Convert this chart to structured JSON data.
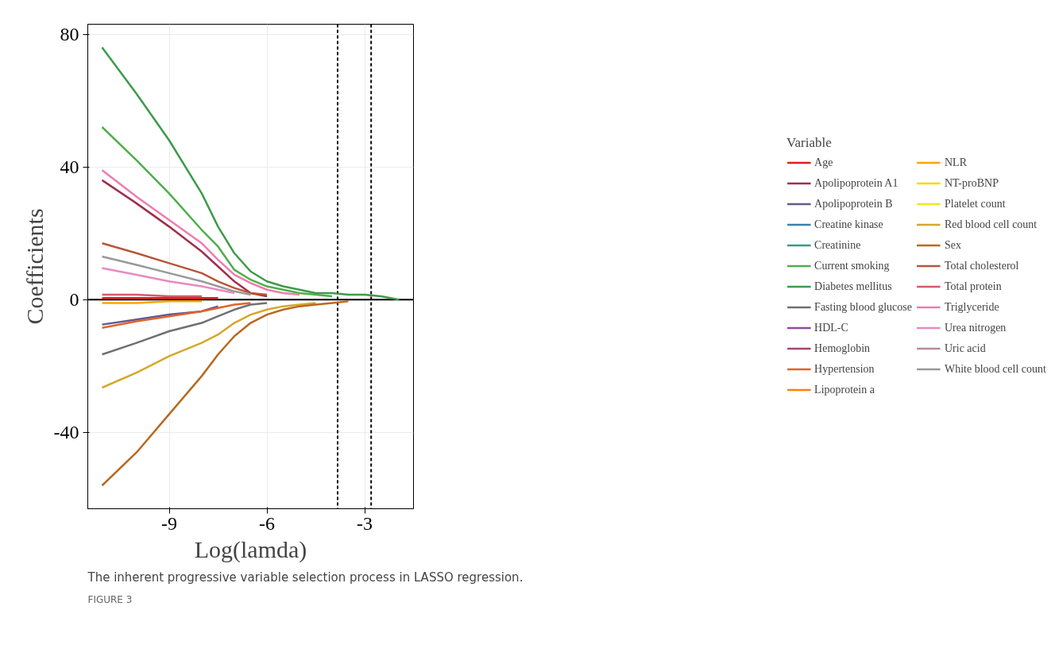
{
  "chart_data": {
    "type": "line",
    "xlabel": "Log(lamda)",
    "ylabel": "Coefficients",
    "legend_title": "Variable",
    "legend": "right",
    "grid": true,
    "line_style": "solid",
    "xlim": [
      -11.5,
      -1.5
    ],
    "ylim": [
      -63,
      83
    ],
    "xticks": [
      -9,
      -6,
      -3
    ],
    "yticks": [
      -40,
      0,
      40,
      80
    ],
    "x": [
      -11.06,
      -10,
      -9,
      -8,
      -7.5,
      -7,
      -6.5,
      -6,
      -5.5,
      -5,
      -4.5,
      -4,
      -3.5,
      -3,
      -2.5,
      -1.94
    ],
    "series": [
      {
        "name": "Age",
        "color": "#e41a1c",
        "values": [
          0.5,
          0.5,
          0.5,
          0.5,
          0.5,
          null,
          null,
          null,
          null,
          null,
          null,
          null,
          null,
          null,
          null,
          null
        ]
      },
      {
        "name": "Apolipoprotein A1",
        "color": "#9e2f4a",
        "values": [
          36,
          29,
          22,
          14.5,
          10,
          5.5,
          2,
          1,
          null,
          null,
          null,
          null,
          null,
          null,
          null,
          null
        ]
      },
      {
        "name": "Apolipoprotein B",
        "color": "#5f5a8f",
        "values": [
          -7.5,
          -6,
          -4.5,
          -3.5,
          -2,
          null,
          null,
          null,
          null,
          null,
          null,
          null,
          null,
          null,
          null,
          null
        ]
      },
      {
        "name": "Creatine kinase",
        "color": "#3b7fae",
        "values": [
          null,
          null,
          null,
          null,
          null,
          null,
          null,
          null,
          null,
          null,
          null,
          null,
          null,
          null,
          null,
          null
        ]
      },
      {
        "name": "Creatinine",
        "color": "#3a9a88",
        "values": [
          null,
          null,
          null,
          null,
          null,
          null,
          null,
          null,
          null,
          null,
          null,
          null,
          null,
          null,
          null,
          null
        ]
      },
      {
        "name": "Current smoking",
        "color": "#4daf4a",
        "values": [
          52,
          42,
          32,
          21,
          16,
          9,
          6,
          4,
          3,
          2,
          1.5,
          1,
          null,
          null,
          null,
          null
        ]
      },
      {
        "name": "Diabetes mellitus",
        "color": "#3e9a4a",
        "values": [
          76,
          62,
          48,
          32,
          22,
          14,
          8.5,
          5.5,
          4,
          3,
          2,
          2,
          1.5,
          1.5,
          1,
          0
        ]
      },
      {
        "name": "Fasting blood glucose",
        "color": "#707070",
        "values": [
          -16.5,
          -13,
          -9.5,
          -7,
          -5,
          -3,
          -1.5,
          -1,
          null,
          null,
          null,
          null,
          null,
          null,
          null,
          null
        ]
      },
      {
        "name": "HDL-C",
        "color": "#8e4a9e",
        "values": [
          null,
          null,
          null,
          null,
          null,
          null,
          null,
          null,
          null,
          null,
          null,
          null,
          null,
          null,
          null,
          null
        ]
      },
      {
        "name": "Hemoglobin",
        "color": "#a8446b",
        "values": [
          null,
          null,
          null,
          null,
          null,
          null,
          null,
          null,
          null,
          null,
          null,
          null,
          null,
          null,
          null,
          null
        ]
      },
      {
        "name": "Hypertension",
        "color": "#e0642c",
        "values": [
          -8.5,
          -6.5,
          -5,
          -3.5,
          -2.5,
          -1.5,
          -1,
          null,
          null,
          null,
          null,
          null,
          null,
          null,
          null,
          null
        ]
      },
      {
        "name": "Lipoprotein a",
        "color": "#ff7f0e",
        "values": [
          null,
          null,
          null,
          null,
          null,
          null,
          null,
          null,
          null,
          null,
          null,
          null,
          null,
          null,
          null,
          null
        ]
      },
      {
        "name": "NLR",
        "color": "#ffa500",
        "values": [
          -1,
          -1,
          -0.5,
          -0.5,
          null,
          null,
          null,
          null,
          null,
          null,
          null,
          null,
          null,
          null,
          null,
          null
        ]
      },
      {
        "name": "NT-proBNP",
        "color": "#ffd500",
        "values": [
          null,
          null,
          null,
          null,
          null,
          null,
          null,
          null,
          null,
          null,
          null,
          null,
          null,
          null,
          null,
          null
        ]
      },
      {
        "name": "Platelet count",
        "color": "#f5e61c",
        "values": [
          null,
          null,
          null,
          null,
          null,
          null,
          null,
          null,
          null,
          null,
          null,
          null,
          null,
          null,
          null,
          null
        ]
      },
      {
        "name": "Red blood cell count",
        "color": "#d4a82a",
        "values": [
          -26.5,
          -22,
          -17,
          -13,
          -10.5,
          -7,
          -4.5,
          -3,
          -2,
          -1.5,
          -1,
          null,
          null,
          null,
          null,
          null
        ]
      },
      {
        "name": "Sex",
        "color": "#b8691f",
        "values": [
          -56,
          -46,
          -34.5,
          -23,
          -16.5,
          -11,
          -7,
          -4.5,
          -3,
          -2,
          -1.5,
          -1,
          -0.5,
          null,
          null,
          null
        ]
      },
      {
        "name": "Total cholesterol",
        "color": "#b8553a",
        "values": [
          17,
          14,
          11,
          8,
          5.5,
          3.5,
          2,
          1.5,
          null,
          null,
          null,
          null,
          null,
          null,
          null,
          null
        ]
      },
      {
        "name": "Total protein",
        "color": "#d45a6a",
        "values": [
          1.5,
          1.5,
          1,
          1,
          null,
          null,
          null,
          null,
          null,
          null,
          null,
          null,
          null,
          null,
          null,
          null
        ]
      },
      {
        "name": "Triglyceride",
        "color": "#f07bb0",
        "values": [
          39,
          31,
          24,
          17,
          12,
          7.5,
          5,
          3,
          2,
          1.5,
          null,
          null,
          null,
          null,
          null,
          null
        ]
      },
      {
        "name": "Urea nitrogen",
        "color": "#e88ac0",
        "values": [
          9.5,
          7.5,
          5.5,
          4,
          3,
          2,
          null,
          null,
          null,
          null,
          null,
          null,
          null,
          null,
          null,
          null
        ]
      },
      {
        "name": "Uric acid",
        "color": "#b88a9a",
        "values": [
          null,
          null,
          null,
          null,
          null,
          null,
          null,
          null,
          null,
          null,
          null,
          null,
          null,
          null,
          null,
          null
        ]
      },
      {
        "name": "White blood cell count",
        "color": "#999999",
        "values": [
          13,
          10.5,
          8,
          5.5,
          4,
          2.5,
          1.5,
          null,
          null,
          null,
          null,
          null,
          null,
          null,
          null,
          null
        ]
      }
    ],
    "ref_lines": [
      {
        "axis": "y",
        "value": 0,
        "color": "#000000",
        "line_style": "solid"
      },
      {
        "axis": "x",
        "value": -3.83,
        "color": "#000000",
        "line_style": "dashed"
      },
      {
        "axis": "x",
        "value": -2.8,
        "color": "#000000",
        "line_style": "dashed"
      }
    ],
    "annotations": [
      "FIGURE 3",
      "The inherent progressive variable selection process in LASSO regression."
    ]
  }
}
